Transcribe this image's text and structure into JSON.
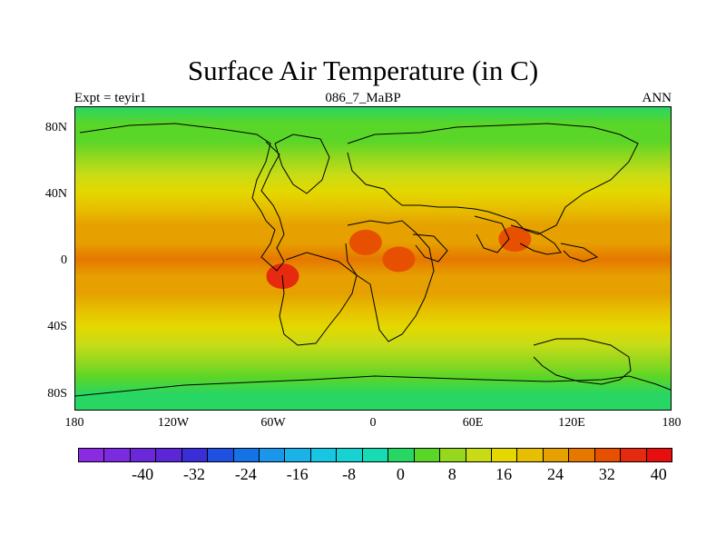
{
  "title": "Surface Air Temperature (in C)",
  "left_label": "Expt = teyir1",
  "center_label": "086_7_MaBP",
  "right_label": "ANN",
  "y_ticks": [
    "80N",
    "40N",
    "0",
    "40S",
    "80S"
  ],
  "x_ticks": [
    "180",
    "120W",
    "60W",
    "0",
    "60E",
    "120E",
    "180"
  ],
  "colorbar": {
    "colors": [
      "#8a2be2",
      "#7b2be0",
      "#6a28d8",
      "#5a26d6",
      "#3a2fd6",
      "#1f50e0",
      "#1673e6",
      "#1a96ea",
      "#1ab2e8",
      "#16c6e2",
      "#16d2d2",
      "#16dcb4",
      "#28d664",
      "#5ad628",
      "#96d81e",
      "#c8dc16",
      "#e4d800",
      "#e6c000",
      "#e6a000",
      "#e67800",
      "#e65000",
      "#e62a10",
      "#e60e0e"
    ],
    "labels": [
      "-40",
      "-32",
      "-24",
      "-16",
      "-8",
      "0",
      "8",
      "16",
      "24",
      "32",
      "40"
    ]
  },
  "chart_data": {
    "type": "heatmap",
    "title": "Surface Air Temperature (in C)",
    "units": "C",
    "experiment": "teyir1",
    "period": "086_7_MaBP",
    "season": "ANN",
    "x_range": [
      -180,
      180
    ],
    "y_range": [
      -90,
      90
    ],
    "zonal_mean_profile": [
      {
        "lat": -90,
        "temp": 0
      },
      {
        "lat": -80,
        "temp": 2
      },
      {
        "lat": -70,
        "temp": 6
      },
      {
        "lat": -60,
        "temp": 10
      },
      {
        "lat": -50,
        "temp": 14
      },
      {
        "lat": -40,
        "temp": 17
      },
      {
        "lat": -30,
        "temp": 21
      },
      {
        "lat": -20,
        "temp": 25
      },
      {
        "lat": -10,
        "temp": 27
      },
      {
        "lat": 0,
        "temp": 28
      },
      {
        "lat": 10,
        "temp": 27
      },
      {
        "lat": 20,
        "temp": 24
      },
      {
        "lat": 30,
        "temp": 21
      },
      {
        "lat": 40,
        "temp": 17
      },
      {
        "lat": 50,
        "temp": 13
      },
      {
        "lat": 60,
        "temp": 9
      },
      {
        "lat": 70,
        "temp": 6
      },
      {
        "lat": 80,
        "temp": 4
      },
      {
        "lat": 90,
        "temp": 2
      }
    ],
    "hotspots": [
      {
        "name": "south-america-interior",
        "lon": -55,
        "lat": -10,
        "temp": 36
      },
      {
        "name": "africa-west",
        "lon": -5,
        "lat": 10,
        "temp": 34
      },
      {
        "name": "africa-east",
        "lon": 15,
        "lat": 0,
        "temp": 34
      },
      {
        "name": "south-asia",
        "lon": 85,
        "lat": 12,
        "temp": 32
      }
    ],
    "colorbar_levels": [
      -48,
      -44,
      -40,
      -36,
      -32,
      -28,
      -24,
      -20,
      -16,
      -12,
      -8,
      -4,
      0,
      4,
      8,
      12,
      16,
      20,
      24,
      28,
      32,
      36,
      40,
      44
    ]
  }
}
